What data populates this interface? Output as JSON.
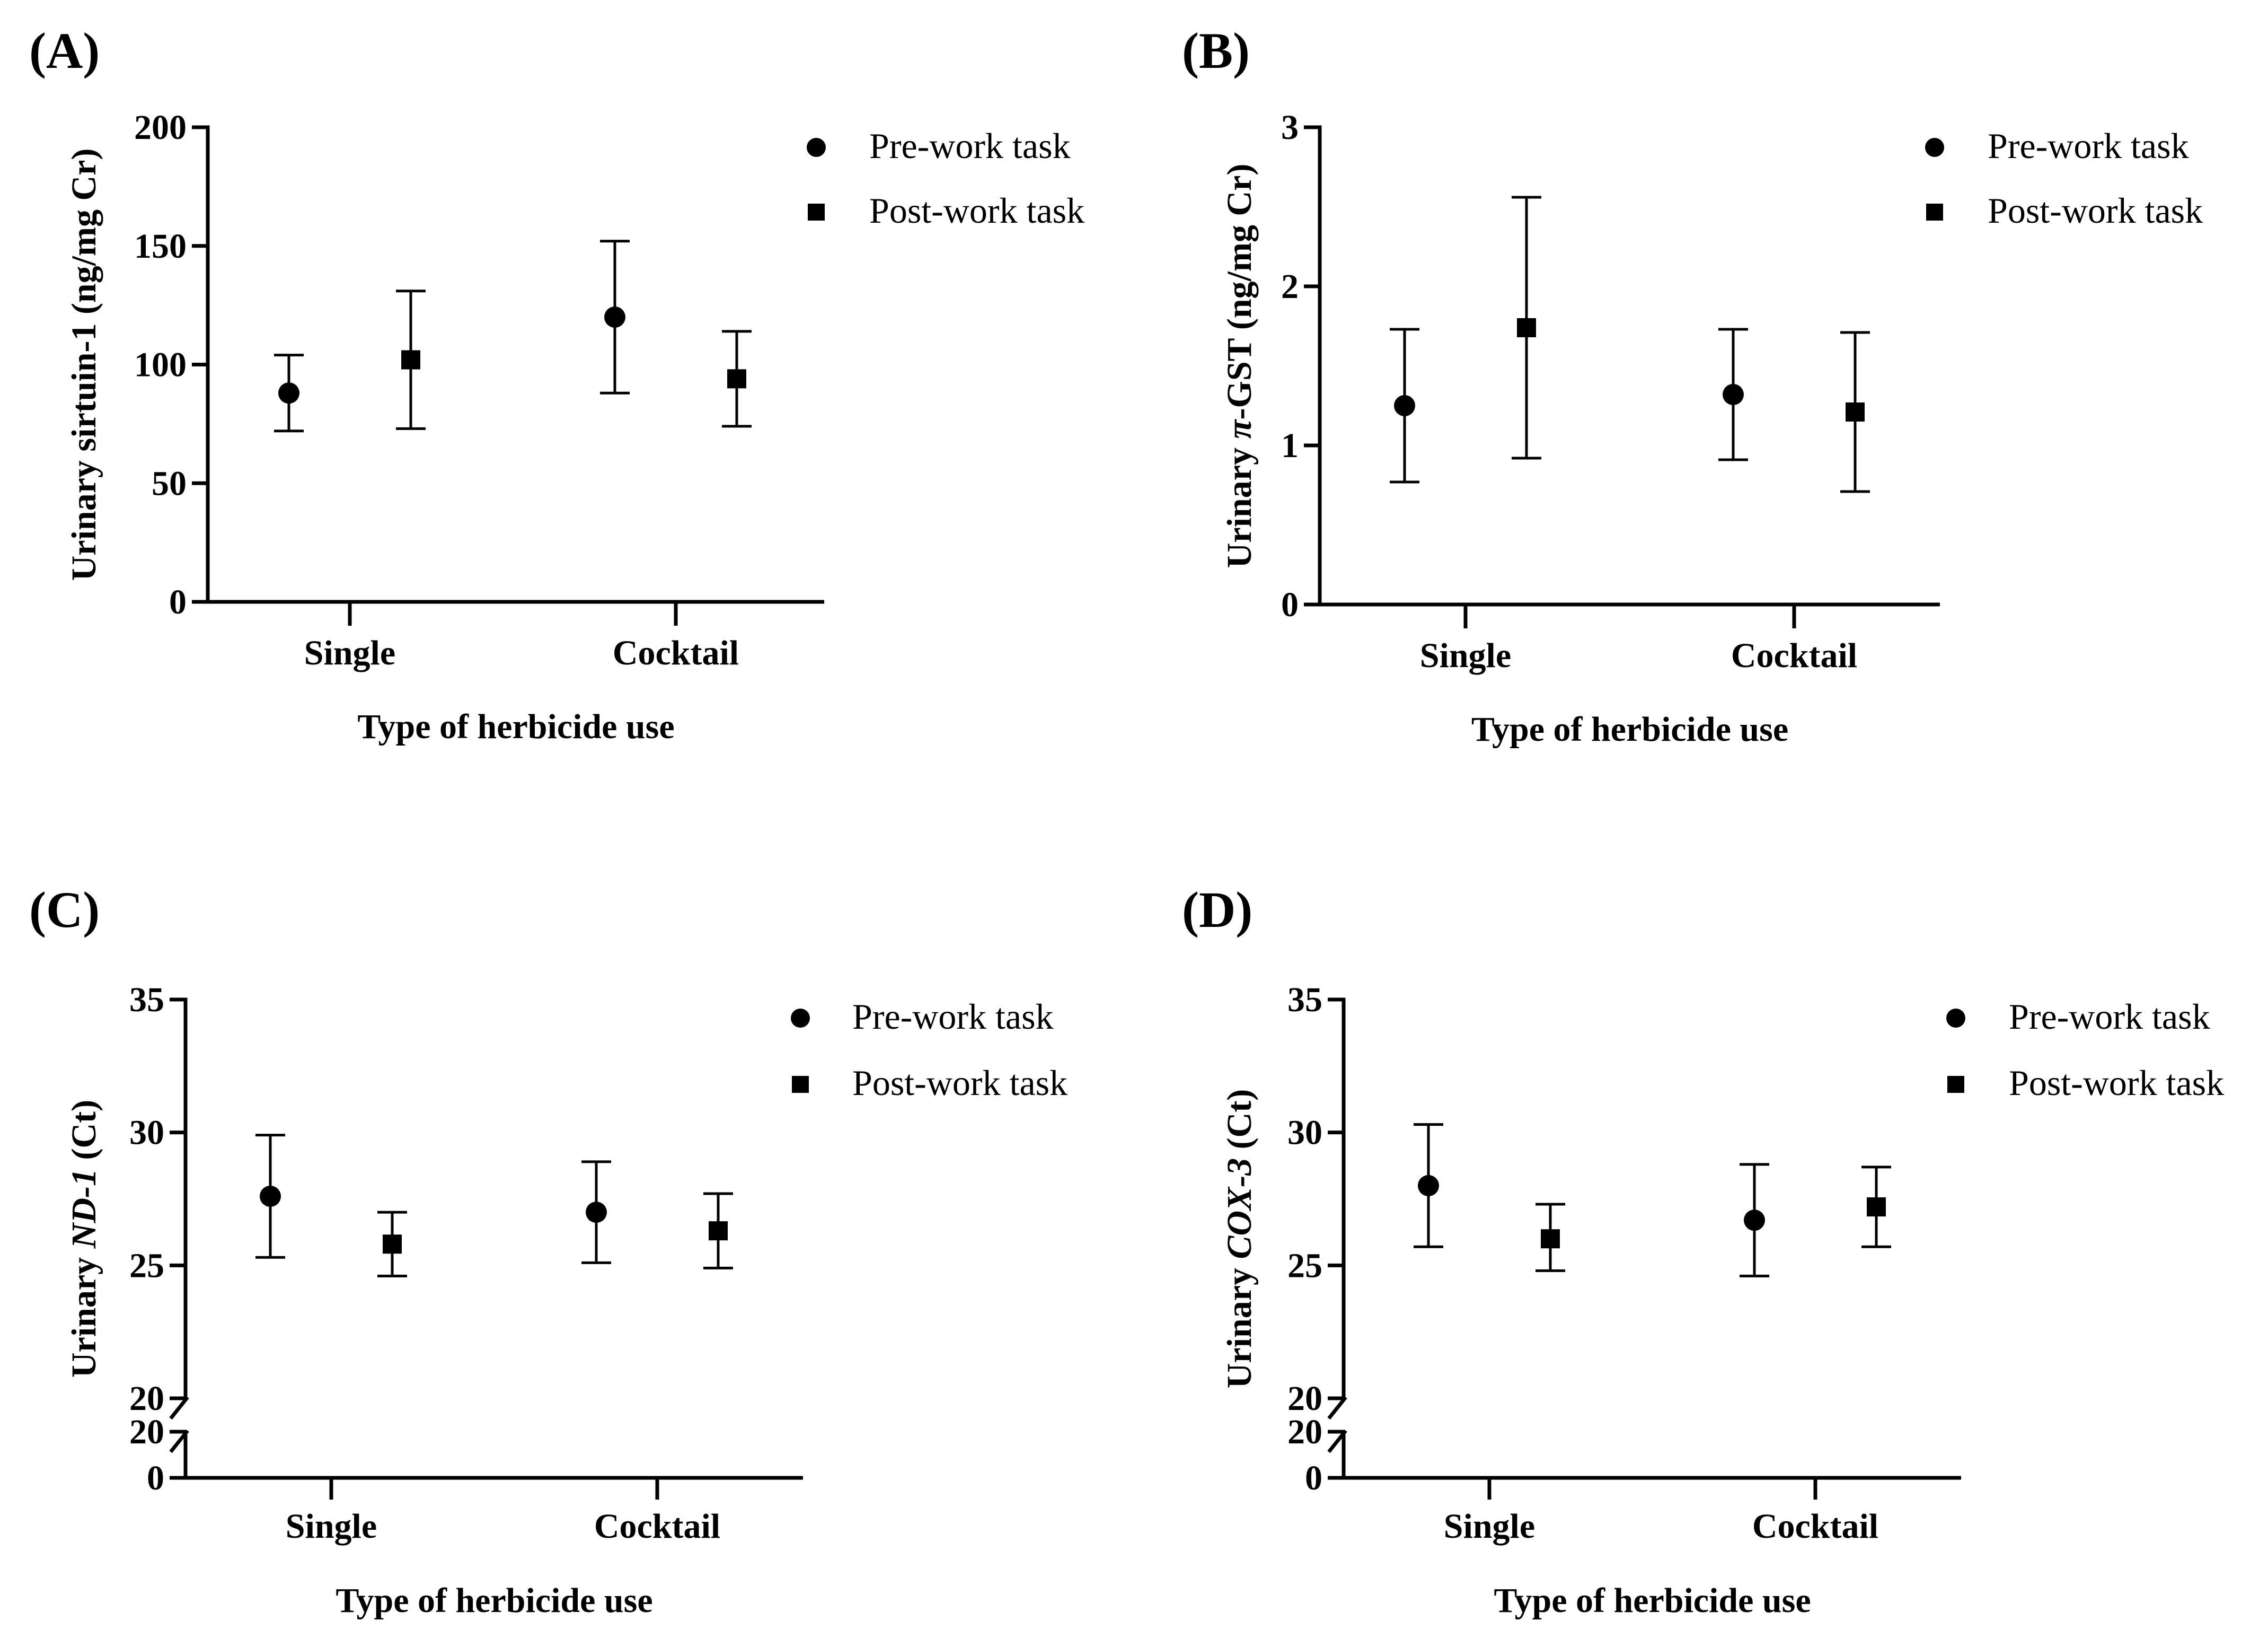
{
  "figure": {
    "panel_count": 4
  },
  "chart_data": [
    {
      "panel_label": "(A)",
      "type": "scatter",
      "xlabel": "Type of herbicide use",
      "ylabel": [
        {
          "text": "Urinary sirtuin-1 (ng/mg Cr)",
          "italic": false
        }
      ],
      "categories": [
        "Single",
        "Cocktail"
      ],
      "ylim": [
        0,
        200
      ],
      "yticks": [
        0,
        50,
        100,
        150,
        200
      ],
      "axis_break": false,
      "legend": {
        "position": "top-right"
      },
      "series": [
        {
          "name": "Pre-work task",
          "marker": "circle",
          "values": [
            88,
            120
          ],
          "lower": [
            72,
            88
          ],
          "upper": [
            104,
            152
          ]
        },
        {
          "name": "Post-work task",
          "marker": "square",
          "values": [
            102,
            94
          ],
          "lower": [
            73,
            74
          ],
          "upper": [
            131,
            114
          ]
        }
      ]
    },
    {
      "panel_label": "(B)",
      "type": "scatter",
      "xlabel": "Type of herbicide use",
      "ylabel": [
        {
          "text": "Urinary ",
          "italic": false
        },
        {
          "text": "π",
          "italic": true
        },
        {
          "text": "-GST (ng/mg Cr)",
          "italic": false
        }
      ],
      "categories": [
        "Single",
        "Cocktail"
      ],
      "ylim": [
        0,
        3
      ],
      "yticks": [
        0,
        1,
        2,
        3
      ],
      "axis_break": false,
      "legend": {
        "position": "top-right"
      },
      "series": [
        {
          "name": "Pre-work task",
          "marker": "circle",
          "values": [
            1.25,
            1.32
          ],
          "lower": [
            0.77,
            0.91
          ],
          "upper": [
            1.73,
            1.73
          ]
        },
        {
          "name": "Post-work task",
          "marker": "square",
          "values": [
            1.74,
            1.21
          ],
          "lower": [
            0.92,
            0.71
          ],
          "upper": [
            2.56,
            1.71
          ]
        }
      ]
    },
    {
      "panel_label": "(C)",
      "type": "scatter",
      "xlabel": "Type of herbicide use",
      "ylabel": [
        {
          "text": "Urinary ",
          "italic": false
        },
        {
          "text": "ND-1",
          "italic": true
        },
        {
          "text": " (Ct)",
          "italic": false
        }
      ],
      "categories": [
        "Single",
        "Cocktail"
      ],
      "ylim": [
        20,
        35
      ],
      "yticks": [
        20,
        25,
        30,
        35
      ],
      "axis_break": true,
      "lower_segment_ticks": [
        0,
        20
      ],
      "legend": {
        "position": "top-right"
      },
      "series": [
        {
          "name": "Pre-work task",
          "marker": "circle",
          "values": [
            27.6,
            27.0
          ],
          "lower": [
            25.3,
            25.1
          ],
          "upper": [
            29.9,
            28.9
          ]
        },
        {
          "name": "Post-work task",
          "marker": "square",
          "values": [
            25.8,
            26.3
          ],
          "lower": [
            24.6,
            24.9
          ],
          "upper": [
            27.0,
            27.7
          ]
        }
      ]
    },
    {
      "panel_label": "(D)",
      "type": "scatter",
      "xlabel": "Type of herbicide use",
      "ylabel": [
        {
          "text": "Urinary ",
          "italic": false
        },
        {
          "text": "COX-3",
          "italic": true
        },
        {
          "text": " (Ct)",
          "italic": false
        }
      ],
      "categories": [
        "Single",
        "Cocktail"
      ],
      "ylim": [
        20,
        35
      ],
      "yticks": [
        20,
        25,
        30,
        35
      ],
      "axis_break": true,
      "lower_segment_ticks": [
        0,
        20
      ],
      "legend": {
        "position": "top-right"
      },
      "series": [
        {
          "name": "Pre-work task",
          "marker": "circle",
          "values": [
            28.0,
            26.7
          ],
          "lower": [
            25.7,
            24.6
          ],
          "upper": [
            30.3,
            28.8
          ]
        },
        {
          "name": "Post-work task",
          "marker": "square",
          "values": [
            26.0,
            27.2
          ],
          "lower": [
            24.8,
            25.7
          ],
          "upper": [
            27.3,
            28.7
          ]
        }
      ]
    }
  ]
}
